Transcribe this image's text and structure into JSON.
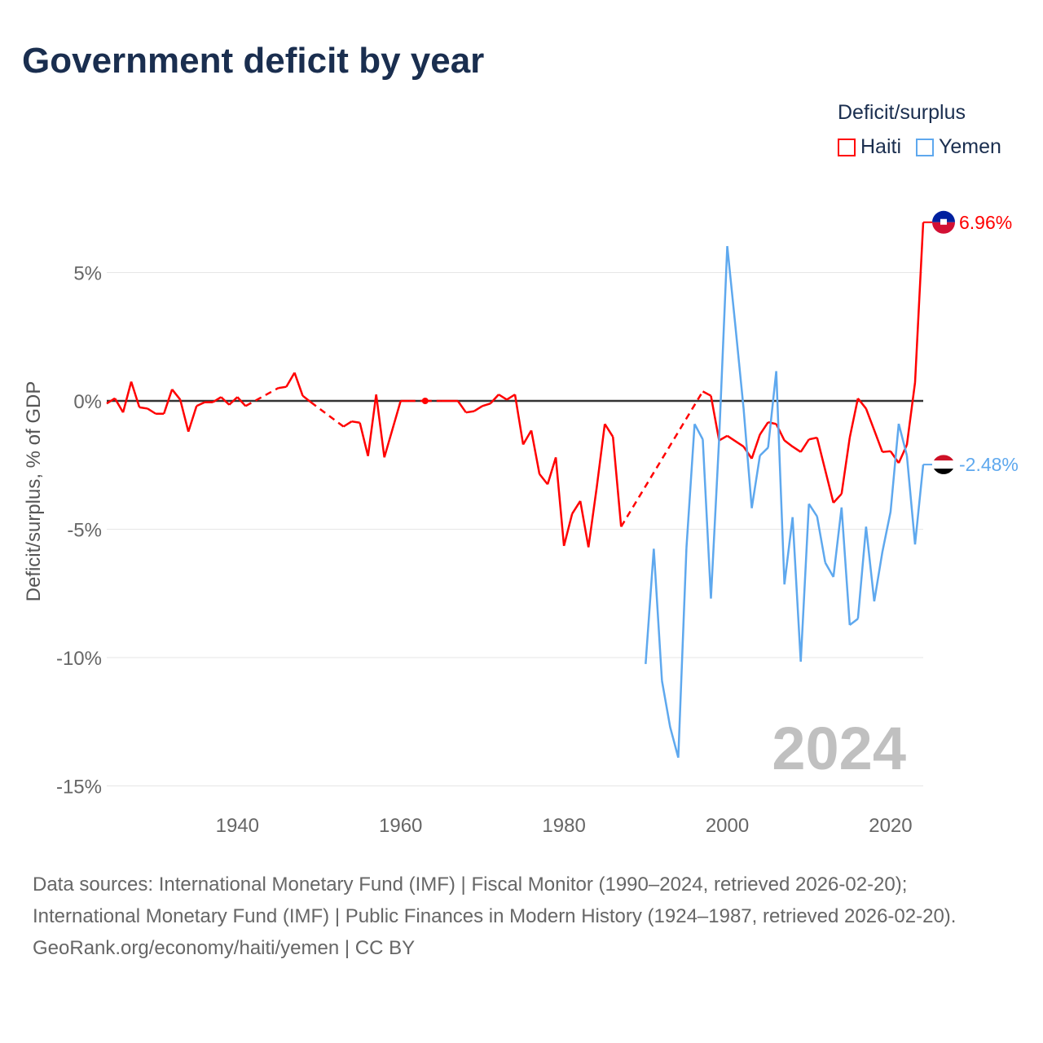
{
  "chart_data": {
    "type": "line",
    "title": "Government deficit by year",
    "xlabel": "",
    "ylabel": "Deficit/surplus, % of GDP",
    "xlim": [
      1924,
      2024
    ],
    "ylim": [
      -15,
      8
    ],
    "x_ticks": [
      1940,
      1960,
      1980,
      2000,
      2020
    ],
    "x_tick_labels": [
      "1940",
      "1960",
      "1980",
      "2000",
      "2020"
    ],
    "y_ticks": [
      5,
      0,
      -5,
      -10,
      -15
    ],
    "y_tick_labels": [
      "5%",
      "0%",
      "-5%",
      "-10%",
      "-15%"
    ],
    "legend_title": "Deficit/surplus",
    "legend_placement": "top-right",
    "year_watermark": "2024",
    "series": [
      {
        "name": "Haiti",
        "color": "#ff0000",
        "end_label": "6.96%",
        "start_year": 1924,
        "values": [
          -0.1,
          0.1,
          -0.45,
          0.75,
          -0.25,
          -0.3,
          -0.5,
          -0.5,
          0.45,
          0.05,
          -1.2,
          -0.2,
          -0.05,
          -0.05,
          0.15,
          -0.15,
          0.15,
          -0.2,
          null,
          null,
          null,
          0.5,
          0.55,
          1.1,
          0.2,
          -0.05,
          null,
          null,
          null,
          -1.0,
          -0.8,
          -0.85,
          -2.15,
          0.25,
          -2.2,
          -1.1,
          0,
          0,
          null,
          0,
          null,
          0,
          0,
          0,
          -0.45,
          -0.4,
          -0.2,
          -0.1,
          0.25,
          0.05,
          0.25,
          -1.7,
          -1.15,
          -2.85,
          -3.25,
          -2.2,
          -5.65,
          -4.4,
          -3.9,
          -5.7,
          -3.4,
          -0.9,
          -1.4,
          -4.9,
          null,
          null,
          null,
          null,
          null,
          null,
          null,
          null,
          null,
          0.37,
          0.2,
          -1.54,
          -1.36,
          -1.57,
          -1.78,
          -2.25,
          -1.31,
          -0.83,
          -0.9,
          -1.54,
          -1.78,
          -1.99,
          -1.5,
          -1.43,
          -2.7,
          -3.97,
          -3.62,
          -1.43,
          0.1,
          -0.3,
          -1.14,
          -1.99,
          -1.96,
          -2.42,
          -1.71,
          0.72,
          6.96
        ]
      },
      {
        "name": "Yemen",
        "color": "#5ea8ee",
        "end_label": "-2.48%",
        "start_year": 1990,
        "values": [
          -10.25,
          -5.76,
          -10.9,
          -12.7,
          -13.9,
          -5.73,
          -0.9,
          -1.5,
          -7.7,
          -1.5,
          6.03,
          2.9,
          -0.3,
          -4.18,
          -2.13,
          -1.82,
          1.16,
          -7.15,
          -4.53,
          -10.16,
          -4.01,
          -4.5,
          -6.3,
          -6.86,
          -4.15,
          -8.73,
          -8.49,
          -4.9,
          -7.81,
          -5.88,
          -4.32,
          -0.89,
          -2.13,
          -5.59,
          -2.48
        ]
      }
    ]
  },
  "source": {
    "line1": "Data sources: International Monetary Fund (IMF) | Fiscal Monitor (1990–2024, retrieved 2026-02-20); International Monetary Fund (IMF) | Public Finances in Modern History (1924–1987, retrieved 2026-02-20).",
    "line2": "GeoRank.org/economy/haiti/yemen | CC BY"
  }
}
